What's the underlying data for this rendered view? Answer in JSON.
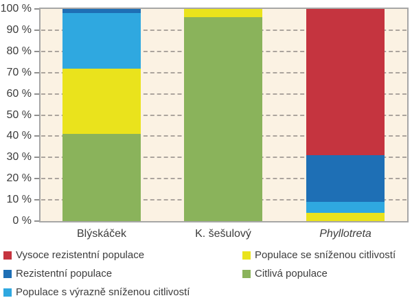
{
  "chart_data": {
    "type": "bar",
    "stacked": true,
    "percent_stacked": true,
    "title": "",
    "xlabel": "",
    "ylabel": "",
    "categories": [
      "Blýskáček",
      "K. šešulový",
      "Phyllotreta"
    ],
    "category_styles": [
      "normal",
      "normal",
      "italic"
    ],
    "series": [
      {
        "name": "Citlivá populace",
        "color": "#8ab35b",
        "values": [
          41,
          96,
          0
        ]
      },
      {
        "name": "Populace se sníženou citlivostí",
        "color": "#eae31c",
        "values": [
          31,
          4,
          4
        ]
      },
      {
        "name": "Populace s výrazně sníženou citlivostí",
        "color": "#2fa8e0",
        "values": [
          26,
          0,
          5
        ]
      },
      {
        "name": "Rezistentní populace",
        "color": "#1e6fb5",
        "values": [
          2,
          0,
          22
        ]
      },
      {
        "name": "Vysoce rezistentní populace",
        "color": "#c5343f",
        "values": [
          0,
          0,
          69
        ]
      }
    ],
    "ylim": [
      0,
      100
    ],
    "yticks": [
      0,
      10,
      20,
      30,
      40,
      50,
      60,
      70,
      80,
      90,
      100
    ],
    "ytick_suffix": " %",
    "grid": "horizontal-dashed",
    "plot_background": "#fbf2e3",
    "border_color": "#a6a6a6",
    "legend_position": "bottom-two-columns",
    "legend": [
      {
        "label": "Vysoce rezistentní populace",
        "color": "#c5343f",
        "column": 0,
        "row": 0
      },
      {
        "label": "Populace se sníženou citlivostí",
        "color": "#eae31c",
        "column": 1,
        "row": 0
      },
      {
        "label": "Rezistentní populace",
        "color": "#1e6fb5",
        "column": 0,
        "row": 1
      },
      {
        "label": "Citlivá populace",
        "color": "#8ab35b",
        "column": 1,
        "row": 1
      },
      {
        "label": "Populace s výrazně sníženou citlivostí",
        "color": "#2fa8e0",
        "column": 0,
        "row": 2
      }
    ]
  }
}
